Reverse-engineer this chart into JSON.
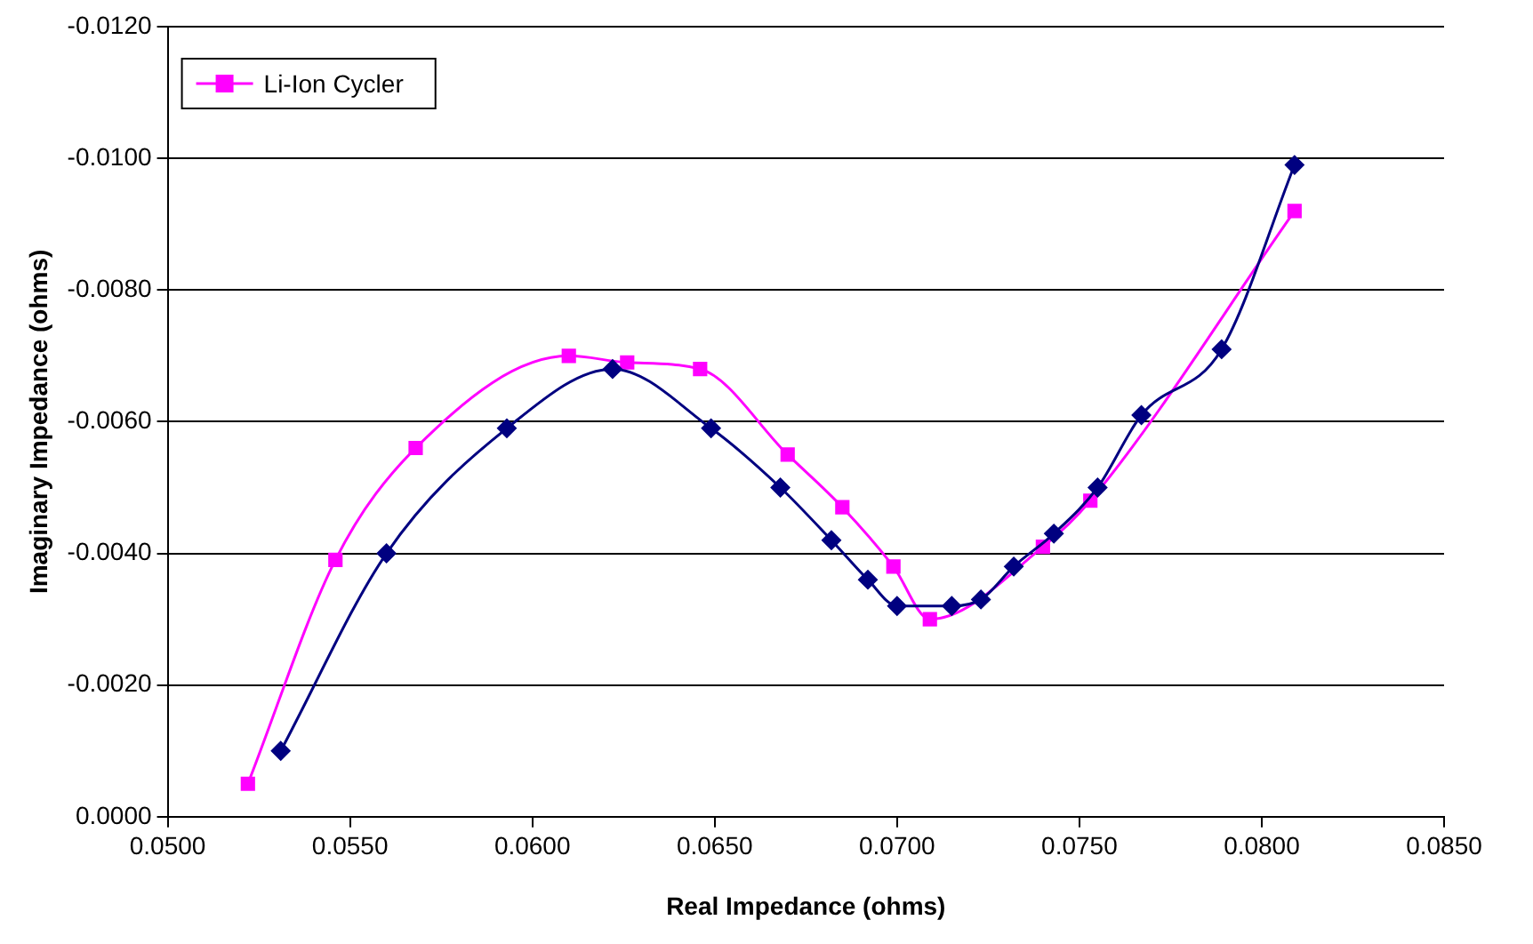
{
  "chart_data": {
    "type": "line",
    "xlabel": "Real Impedance (ohms)",
    "ylabel": "Imaginary Impedance (ohms)",
    "xlim": [
      0.05,
      0.085
    ],
    "xticks": [
      {
        "value": 0.05,
        "label": "0.0500"
      },
      {
        "value": 0.055,
        "label": "0.0550"
      },
      {
        "value": 0.06,
        "label": "0.0600"
      },
      {
        "value": 0.065,
        "label": "0.0650"
      },
      {
        "value": 0.07,
        "label": "0.0700"
      },
      {
        "value": 0.075,
        "label": "0.0750"
      },
      {
        "value": 0.08,
        "label": "0.0800"
      },
      {
        "value": 0.085,
        "label": "0.0850"
      }
    ],
    "ylim": [
      0,
      -0.012
    ],
    "yticks": [
      {
        "value": 0,
        "label": "0.0000"
      },
      {
        "value": -0.002,
        "label": "-0.0020"
      },
      {
        "value": -0.004,
        "label": "-0.0040"
      },
      {
        "value": -0.006,
        "label": "-0.0060"
      },
      {
        "value": -0.008,
        "label": "-0.0080"
      },
      {
        "value": -0.01,
        "label": "-0.0100"
      },
      {
        "value": -0.012,
        "label": "-0.0120"
      }
    ],
    "grid": "y",
    "legend": "top left",
    "series": [
      {
        "color": "#000080",
        "marker": "diamond",
        "x": [
          0.0531,
          0.056,
          0.0593,
          0.0622,
          0.0649,
          0.0668,
          0.0682,
          0.0692,
          0.07,
          0.0715,
          0.0723,
          0.0732,
          0.0743,
          0.0755,
          0.0767,
          0.0789,
          0.0809
        ],
        "values": [
          -0.001,
          -0.004,
          -0.0059,
          -0.0068,
          -0.0059,
          -0.005,
          -0.0042,
          -0.0036,
          -0.0032,
          -0.0032,
          -0.0033,
          -0.0038,
          -0.0043,
          -0.005,
          -0.0061,
          -0.0071,
          -0.0099
        ]
      },
      {
        "name": "Li-Ion Cycler",
        "color": "#ff00ff",
        "marker": "square",
        "x": [
          0.0522,
          0.0546,
          0.0568,
          0.061,
          0.0626,
          0.0646,
          0.067,
          0.0685,
          0.0699,
          0.0709,
          0.074,
          0.0753,
          0.0809
        ],
        "values": [
          -0.0005,
          -0.0039,
          -0.0056,
          -0.007,
          -0.0069,
          -0.0068,
          -0.0055,
          -0.0047,
          -0.0038,
          -0.003,
          -0.0041,
          -0.0048,
          -0.0092
        ]
      }
    ]
  }
}
